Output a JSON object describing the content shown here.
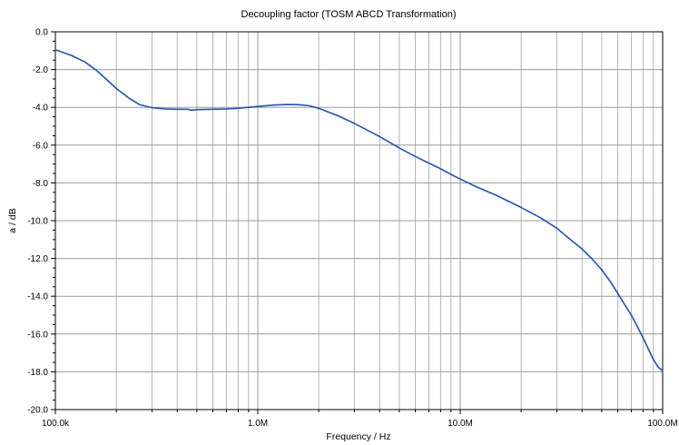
{
  "chart_data": {
    "type": "line",
    "title": "Decoupling factor (TOSM ABCD Transformation)",
    "xlabel": "Frequency / Hz",
    "ylabel": "a / dB",
    "x_scale": "log",
    "xlim": [
      100000,
      100000000
    ],
    "ylim": [
      -20,
      0
    ],
    "grid": true,
    "x_ticks": [
      {
        "value": 100000,
        "label": "100.0k"
      },
      {
        "value": 1000000,
        "label": "1.0M"
      },
      {
        "value": 10000000,
        "label": "10.0M"
      },
      {
        "value": 100000000,
        "label": "100.0M"
      }
    ],
    "y_ticks": [
      {
        "value": 0,
        "label": "0.0"
      },
      {
        "value": -2,
        "label": "-2.0"
      },
      {
        "value": -4,
        "label": "-4.0"
      },
      {
        "value": -6,
        "label": "-6.0"
      },
      {
        "value": -8,
        "label": "-8.0"
      },
      {
        "value": -10,
        "label": "-10.0"
      },
      {
        "value": -12,
        "label": "-12.0"
      },
      {
        "value": -14,
        "label": "-14.0"
      },
      {
        "value": -16,
        "label": "-16.0"
      },
      {
        "value": -18,
        "label": "-18.0"
      },
      {
        "value": -20,
        "label": "-20.0"
      }
    ],
    "series": [
      {
        "color": "#1f4fc8",
        "x": [
          100000,
          120000,
          140000,
          160000,
          180000,
          200000,
          230000,
          260000,
          300000,
          350000,
          400000,
          450000,
          470000,
          500000,
          600000,
          700000,
          800000,
          900000,
          1000000,
          1200000,
          1400000,
          1600000,
          1800000,
          2000000,
          2500000,
          3000000,
          4000000,
          5000000,
          6000000,
          7000000,
          8000000,
          9000000,
          10000000,
          12000000,
          15000000,
          20000000,
          25000000,
          30000000,
          35000000,
          40000000,
          45000000,
          50000000,
          55000000,
          60000000,
          65000000,
          70000000,
          75000000,
          80000000,
          85000000,
          90000000,
          95000000,
          100000000
        ],
        "y": [
          -0.95,
          -1.25,
          -1.6,
          -2.05,
          -2.55,
          -3.0,
          -3.5,
          -3.85,
          -4.02,
          -4.08,
          -4.1,
          -4.1,
          -4.15,
          -4.12,
          -4.1,
          -4.08,
          -4.05,
          -4.0,
          -3.95,
          -3.88,
          -3.85,
          -3.86,
          -3.92,
          -4.05,
          -4.45,
          -4.85,
          -5.55,
          -6.15,
          -6.6,
          -6.95,
          -7.25,
          -7.55,
          -7.8,
          -8.2,
          -8.65,
          -9.3,
          -9.85,
          -10.4,
          -11.0,
          -11.5,
          -12.05,
          -12.6,
          -13.2,
          -13.85,
          -14.45,
          -15.0,
          -15.6,
          -16.2,
          -16.8,
          -17.35,
          -17.75,
          -17.95
        ]
      }
    ]
  }
}
